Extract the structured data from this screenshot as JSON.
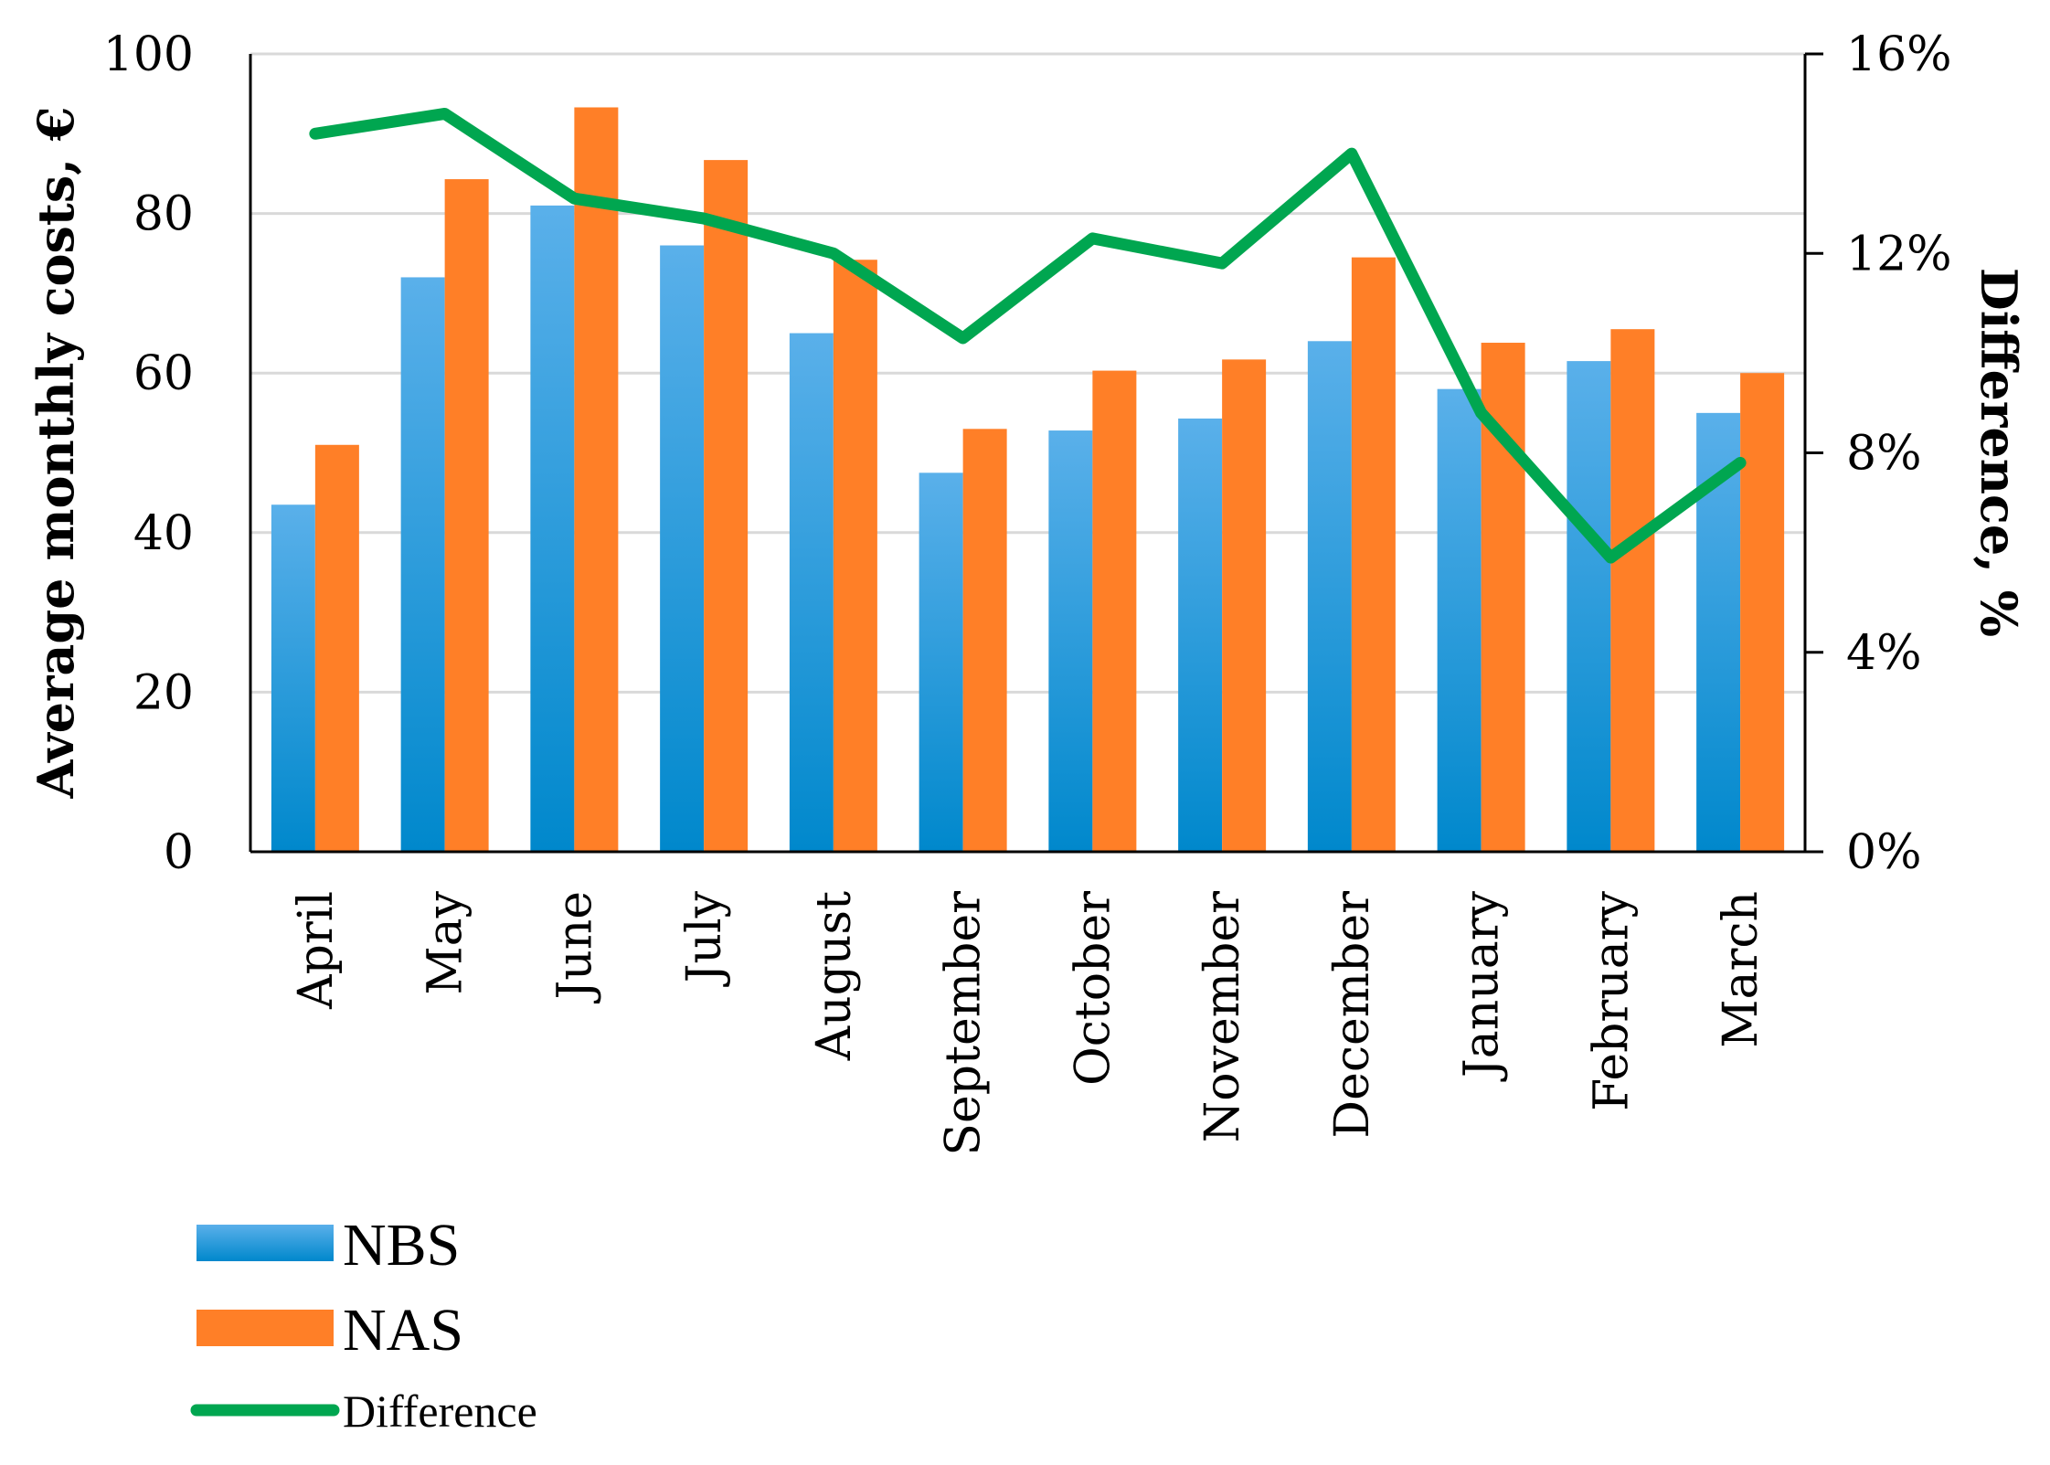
{
  "chart_data": {
    "type": "bar",
    "categories": [
      "April",
      "May",
      "June",
      "July",
      "August",
      "September",
      "October",
      "November",
      "December",
      "January",
      "February",
      "March"
    ],
    "series": [
      {
        "name": "NBS",
        "kind": "bar",
        "axis": "left",
        "color": "#2E9BE0",
        "values": [
          43.5,
          72,
          81,
          76,
          65,
          47.5,
          52.8,
          54.3,
          64,
          58,
          61.5,
          55
        ]
      },
      {
        "name": "NAS",
        "kind": "bar",
        "axis": "left",
        "color": "#FF7F27",
        "values": [
          51,
          84.3,
          93.3,
          86.7,
          74.2,
          53,
          60.3,
          61.7,
          74.5,
          63.8,
          65.5,
          60
        ]
      },
      {
        "name": "Difference",
        "kind": "line",
        "axis": "right",
        "color": "#00A650",
        "values": [
          14.4,
          14.8,
          13.1,
          12.7,
          12.0,
          10.3,
          12.3,
          11.8,
          14.0,
          8.8,
          5.9,
          7.8
        ]
      }
    ],
    "ylabel": "Average monthly costs, €",
    "ylabel_right": "Difference, %",
    "ylim": [
      0,
      100
    ],
    "ylim_right": [
      0,
      16
    ],
    "yticks": [
      "0",
      "20",
      "40",
      "60",
      "80",
      "100"
    ],
    "yticks_right": [
      "0%",
      "4%",
      "8%",
      "12%",
      "16%"
    ],
    "grid": true,
    "legend": {
      "placement": "bottom-left",
      "entries": [
        "NBS",
        "NAS",
        "Difference"
      ]
    }
  }
}
